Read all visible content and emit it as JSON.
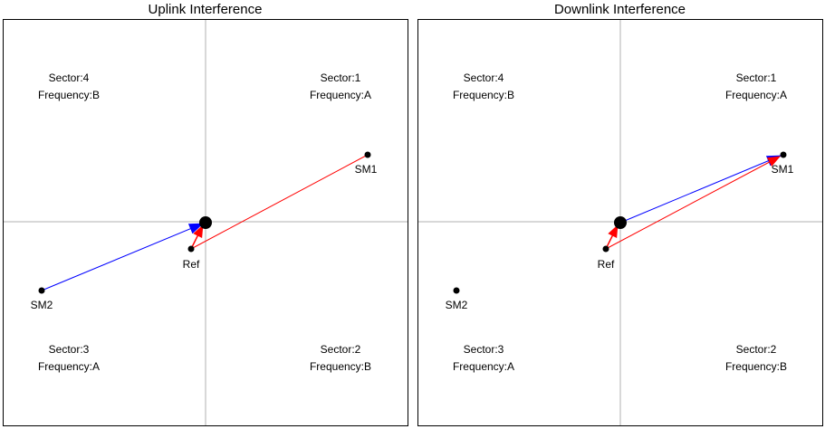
{
  "panels": [
    {
      "title": "Uplink Interference",
      "sectors": [
        {
          "sector": "Sector:4",
          "frequency": "Frequency:B"
        },
        {
          "sector": "Sector:1",
          "frequency": "Frequency:A"
        },
        {
          "sector": "Sector:3",
          "frequency": "Frequency:A"
        },
        {
          "sector": "Sector:2",
          "frequency": "Frequency:B"
        }
      ],
      "points": {
        "sm1": "SM1",
        "sm2": "SM2",
        "ref": "Ref"
      }
    },
    {
      "title": "Downlink Interference",
      "sectors": [
        {
          "sector": "Sector:4",
          "frequency": "Frequency:B"
        },
        {
          "sector": "Sector:1",
          "frequency": "Frequency:A"
        },
        {
          "sector": "Sector:3",
          "frequency": "Frequency:A"
        },
        {
          "sector": "Sector:2",
          "frequency": "Frequency:B"
        }
      ],
      "points": {
        "sm1": "SM1",
        "sm2": "SM2",
        "ref": "Ref"
      }
    }
  ],
  "colors": {
    "interference": "#ff0000",
    "signal": "#0000ff",
    "axis": "#b0b0b0",
    "frame": "#000000"
  }
}
